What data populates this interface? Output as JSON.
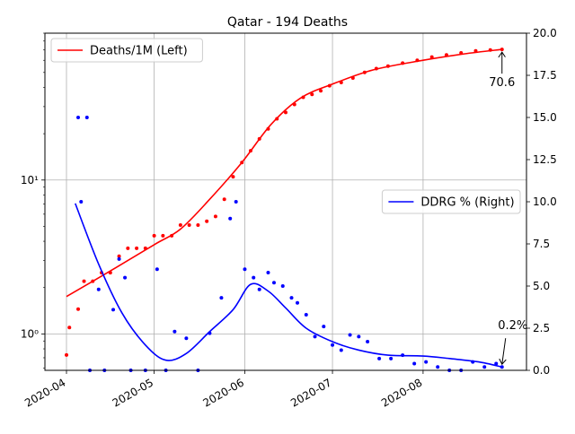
{
  "chart_data": {
    "type": "line",
    "title": "Qatar - 194 Deaths",
    "xlabel": "",
    "ylabel_left": "",
    "ylabel_right": "",
    "x_ticks": [
      "2020-04",
      "2020-05",
      "2020-06",
      "2020-07",
      "2020-08"
    ],
    "x_range": [
      "2020-04-01",
      "2020-08-29"
    ],
    "left_axis": {
      "scale": "log",
      "ylim": [
        0.58,
        90
      ],
      "tick_labels": [
        "10⁰",
        "10¹"
      ],
      "tick_values": [
        1,
        10
      ]
    },
    "right_axis": {
      "scale": "linear",
      "ylim": [
        0,
        20
      ],
      "tick_values": [
        0.0,
        2.5,
        5.0,
        7.5,
        10.0,
        12.5,
        15.0,
        17.5,
        20.0
      ],
      "tick_labels": [
        "0.0",
        "2.5",
        "5.0",
        "7.5",
        "10.0",
        "12.5",
        "15.0",
        "17.5",
        "20.0"
      ]
    },
    "grid": true,
    "legends": [
      {
        "label": "Deaths/1M (Left)",
        "color": "#ff0000",
        "placement": "upper-left"
      },
      {
        "label": "DDRG % (Right)",
        "color": "#0000ff",
        "placement": "center-right"
      }
    ],
    "series": [
      {
        "name": "Deaths/1M (Left)",
        "axis": "left",
        "color": "#ff0000",
        "line": {
          "x": [
            "2020-04-01",
            "2020-04-15",
            "2020-05-01",
            "2020-05-10",
            "2020-05-20",
            "2020-05-31",
            "2020-06-10",
            "2020-06-20",
            "2020-07-01",
            "2020-07-15",
            "2020-08-01",
            "2020-08-15",
            "2020-08-28"
          ],
          "y": [
            1.75,
            2.5,
            3.8,
            4.8,
            7.5,
            13.0,
            23.0,
            34.0,
            42.0,
            52.0,
            60.0,
            66.0,
            70.6
          ]
        },
        "points": {
          "x": [
            "2020-04-01",
            "2020-04-02",
            "2020-04-05",
            "2020-04-07",
            "2020-04-10",
            "2020-04-13",
            "2020-04-16",
            "2020-04-19",
            "2020-04-22",
            "2020-04-25",
            "2020-04-28",
            "2020-05-01",
            "2020-05-04",
            "2020-05-07",
            "2020-05-10",
            "2020-05-13",
            "2020-05-16",
            "2020-05-19",
            "2020-05-22",
            "2020-05-25",
            "2020-05-28",
            "2020-05-31",
            "2020-06-03",
            "2020-06-06",
            "2020-06-09",
            "2020-06-12",
            "2020-06-15",
            "2020-06-18",
            "2020-06-21",
            "2020-06-24",
            "2020-06-27",
            "2020-06-30",
            "2020-07-04",
            "2020-07-08",
            "2020-07-12",
            "2020-07-16",
            "2020-07-20",
            "2020-07-25",
            "2020-07-30",
            "2020-08-04",
            "2020-08-09",
            "2020-08-14",
            "2020-08-19",
            "2020-08-24",
            "2020-08-28"
          ],
          "y": [
            0.73,
            1.1,
            1.45,
            2.2,
            2.2,
            2.5,
            2.5,
            3.2,
            3.6,
            3.6,
            3.6,
            4.35,
            4.35,
            4.35,
            5.1,
            5.1,
            5.1,
            5.4,
            5.8,
            7.5,
            10.5,
            13.0,
            15.5,
            18.5,
            21.5,
            25.0,
            27.5,
            31.0,
            34.5,
            36.0,
            38.0,
            41.0,
            43.0,
            46.0,
            50.0,
            53.0,
            55.0,
            57.5,
            60.0,
            63.0,
            65.0,
            67.0,
            69.0,
            70.0,
            70.6
          ]
        },
        "annotation": {
          "text": "70.6",
          "x": "2020-08-28",
          "y": 70.6
        }
      },
      {
        "name": "DDRG % (Right)",
        "axis": "right",
        "color": "#0000ff",
        "line": {
          "x": [
            "2020-04-04",
            "2020-04-12",
            "2020-04-20",
            "2020-04-28",
            "2020-05-05",
            "2020-05-12",
            "2020-05-20",
            "2020-05-28",
            "2020-06-03",
            "2020-06-09",
            "2020-06-15",
            "2020-06-22",
            "2020-07-01",
            "2020-07-10",
            "2020-07-20",
            "2020-08-01",
            "2020-08-10",
            "2020-08-20",
            "2020-08-28"
          ],
          "y": [
            9.9,
            6.3,
            3.4,
            1.5,
            0.6,
            1.0,
            2.3,
            3.6,
            5.1,
            4.7,
            3.7,
            2.5,
            1.7,
            1.2,
            0.9,
            0.85,
            0.7,
            0.5,
            0.2
          ]
        },
        "points": {
          "x": [
            "2020-04-05",
            "2020-04-06",
            "2020-04-08",
            "2020-04-09",
            "2020-04-12",
            "2020-04-14",
            "2020-04-17",
            "2020-04-19",
            "2020-04-21",
            "2020-04-23",
            "2020-04-28",
            "2020-05-02",
            "2020-05-05",
            "2020-05-08",
            "2020-05-12",
            "2020-05-16",
            "2020-05-20",
            "2020-05-24",
            "2020-05-27",
            "2020-05-29",
            "2020-06-01",
            "2020-06-04",
            "2020-06-06",
            "2020-06-09",
            "2020-06-11",
            "2020-06-14",
            "2020-06-17",
            "2020-06-19",
            "2020-06-22",
            "2020-06-25",
            "2020-06-28",
            "2020-07-01",
            "2020-07-04",
            "2020-07-07",
            "2020-07-10",
            "2020-07-13",
            "2020-07-17",
            "2020-07-21",
            "2020-07-25",
            "2020-07-29",
            "2020-08-02",
            "2020-08-06",
            "2020-08-10",
            "2020-08-14",
            "2020-08-18",
            "2020-08-22",
            "2020-08-26",
            "2020-08-28"
          ],
          "y": [
            15.0,
            10.0,
            15.0,
            0.0,
            4.8,
            0.0,
            3.6,
            6.6,
            5.5,
            0.0,
            0.0,
            6.0,
            0.0,
            2.3,
            1.9,
            0.0,
            2.2,
            4.3,
            9.0,
            10.0,
            6.0,
            5.5,
            4.8,
            5.8,
            5.2,
            5.0,
            4.3,
            4.0,
            3.3,
            2.0,
            2.6,
            1.5,
            1.2,
            2.1,
            2.0,
            1.7,
            0.7,
            0.7,
            0.9,
            0.4,
            0.5,
            0.2,
            0.0,
            0.0,
            0.5,
            0.2,
            0.4,
            0.2
          ]
        },
        "annotation": {
          "text": "0.2%",
          "x": "2020-08-28",
          "y": 0.2
        }
      }
    ]
  }
}
